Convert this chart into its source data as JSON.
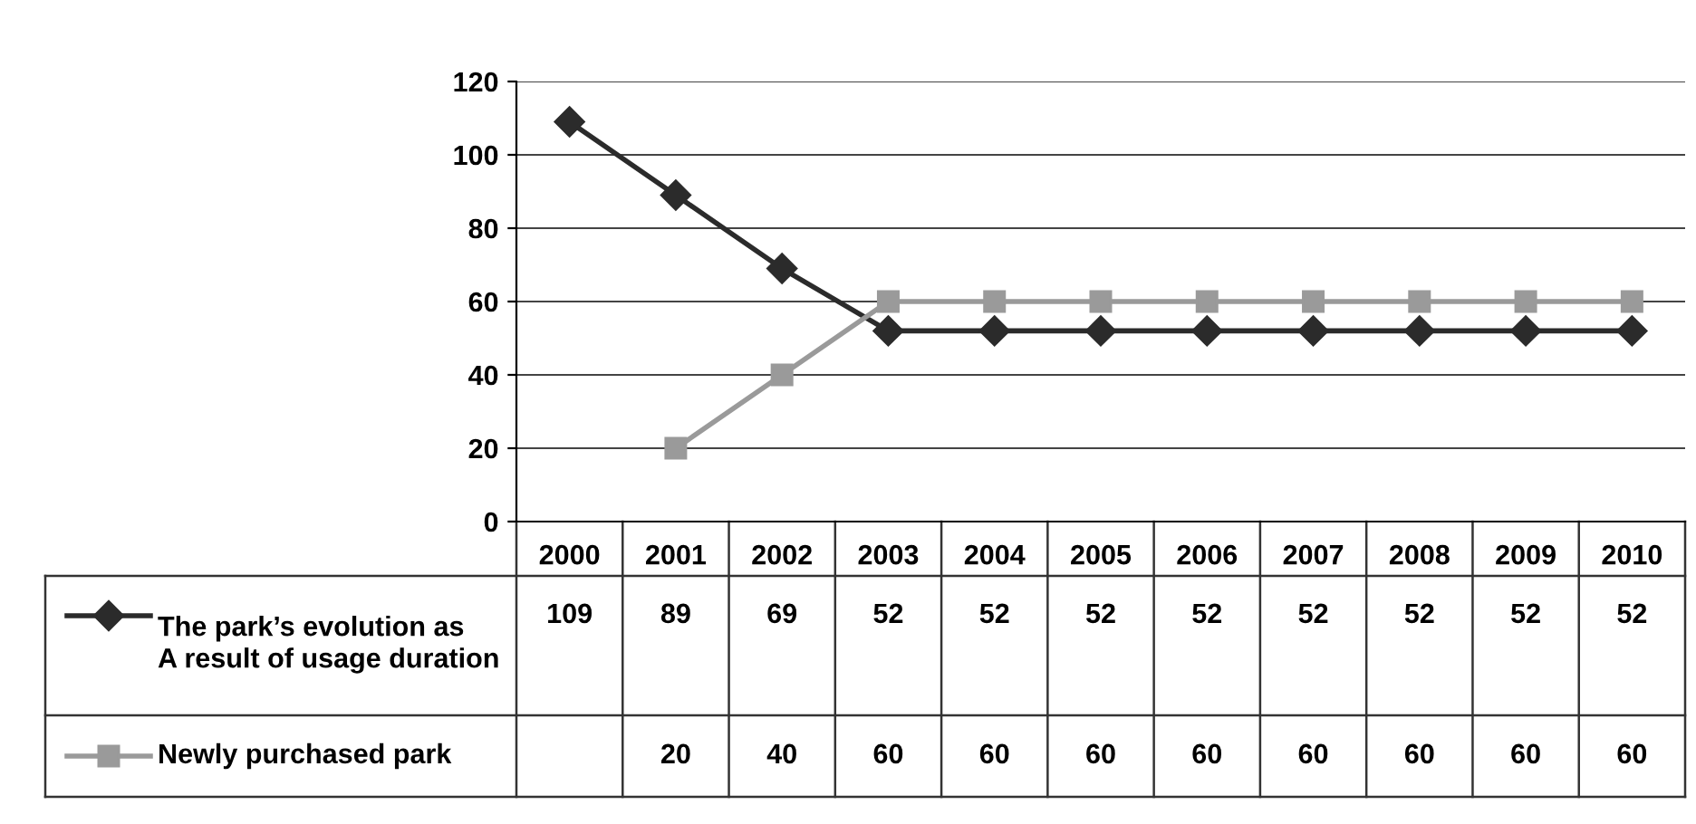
{
  "chart_data": {
    "type": "line",
    "categories": [
      "2000",
      "2001",
      "2002",
      "2003",
      "2004",
      "2005",
      "2006",
      "2007",
      "2008",
      "2009",
      "2010"
    ],
    "series": [
      {
        "name": "The park’s evolution as\nA result of usage duration",
        "color": "#2b2b2b",
        "marker": "diamond",
        "values": [
          109,
          89,
          69,
          52,
          52,
          52,
          52,
          52,
          52,
          52,
          52
        ]
      },
      {
        "name": "Newly purchased park",
        "color": "#9a9a9a",
        "marker": "square",
        "values": [
          null,
          20,
          40,
          60,
          60,
          60,
          60,
          60,
          60,
          60,
          60
        ]
      }
    ],
    "ylim": [
      0,
      120
    ],
    "yticks": [
      0,
      20,
      40,
      60,
      80,
      100,
      120
    ],
    "grid": "y",
    "legend": "bottom left",
    "data_labels": true,
    "line_style": "solid"
  }
}
